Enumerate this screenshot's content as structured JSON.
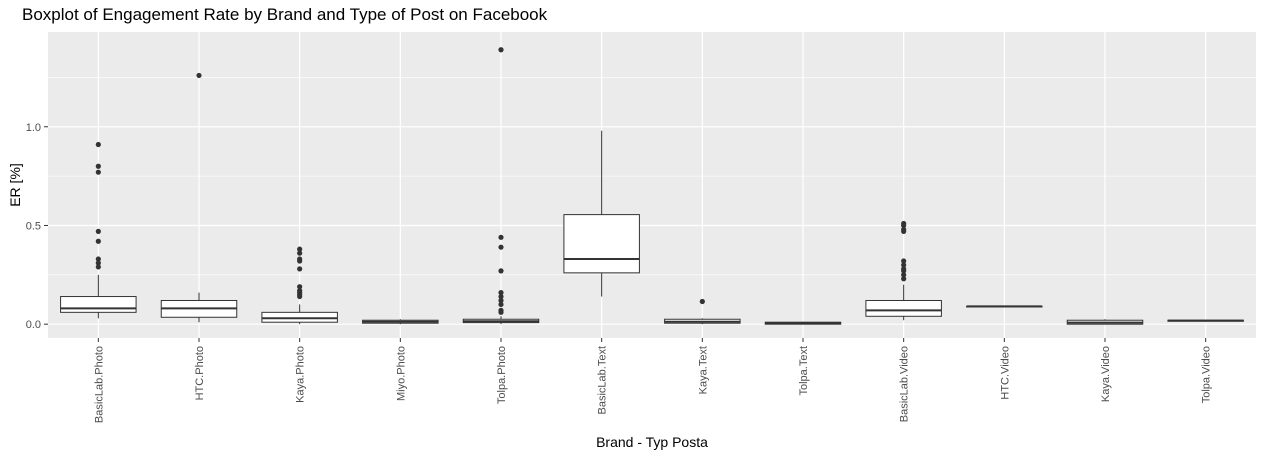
{
  "chart_data": {
    "type": "boxplot",
    "title": "Boxplot of Engagement Rate by Brand and Type of Post on Facebook",
    "xlabel": "Brand - Typ Posta",
    "ylabel": "ER [%]",
    "ylim": [
      -0.07,
      1.48
    ],
    "y_ticks": [
      0.0,
      0.5,
      1.0
    ],
    "y_tick_labels": [
      "0.0",
      "0.5",
      "1.0"
    ],
    "grid": true,
    "background": "#EBEBEB",
    "categories": [
      "BasicLab.Photo",
      "HTC.Photo",
      "Kaya.Photo",
      "Miyo.Photo",
      "Tolpa.Photo",
      "BasicLab.Text",
      "Kaya.Text",
      "Tolpa.Text",
      "BasicLab.Video",
      "HTC.Video",
      "Kaya.Video",
      "Tolpa.Video"
    ],
    "boxes": [
      {
        "category": "BasicLab.Photo",
        "min": 0.03,
        "q1": 0.06,
        "median": 0.08,
        "q3": 0.14,
        "max": 0.25,
        "outliers": [
          0.91,
          0.8,
          0.77,
          0.47,
          0.42,
          0.33,
          0.31,
          0.29
        ]
      },
      {
        "category": "HTC.Photo",
        "min": 0.01,
        "q1": 0.035,
        "median": 0.08,
        "q3": 0.12,
        "max": 0.16,
        "outliers": [
          1.26
        ]
      },
      {
        "category": "Kaya.Photo",
        "min": 0.0,
        "q1": 0.01,
        "median": 0.03,
        "q3": 0.06,
        "max": 0.1,
        "outliers": [
          0.38,
          0.36,
          0.33,
          0.32,
          0.28,
          0.19,
          0.17,
          0.16,
          0.15,
          0.14
        ]
      },
      {
        "category": "Miyo.Photo",
        "min": 0.0,
        "q1": 0.005,
        "median": 0.012,
        "q3": 0.02,
        "max": 0.025,
        "outliers": []
      },
      {
        "category": "Tolpa.Photo",
        "min": 0.0,
        "q1": 0.008,
        "median": 0.015,
        "q3": 0.025,
        "max": 0.04,
        "outliers": [
          1.39,
          0.44,
          0.39,
          0.27,
          0.16,
          0.14,
          0.12,
          0.1,
          0.07,
          0.06
        ]
      },
      {
        "category": "BasicLab.Text",
        "min": 0.14,
        "q1": 0.26,
        "median": 0.33,
        "q3": 0.555,
        "max": 0.98,
        "outliers": []
      },
      {
        "category": "Kaya.Text",
        "min": 0.0,
        "q1": 0.005,
        "median": 0.012,
        "q3": 0.025,
        "max": 0.03,
        "outliers": [
          0.115
        ]
      },
      {
        "category": "Tolpa.Text",
        "min": 0.0,
        "q1": 0.0,
        "median": 0.005,
        "q3": 0.01,
        "max": 0.012,
        "outliers": []
      },
      {
        "category": "BasicLab.Video",
        "min": 0.02,
        "q1": 0.04,
        "median": 0.07,
        "q3": 0.12,
        "max": 0.2,
        "outliers": [
          0.51,
          0.5,
          0.48,
          0.47,
          0.32,
          0.3,
          0.28,
          0.27,
          0.25,
          0.23
        ]
      },
      {
        "category": "HTC.Video",
        "min": 0.09,
        "q1": 0.09,
        "median": 0.09,
        "q3": 0.09,
        "max": 0.09,
        "outliers": []
      },
      {
        "category": "Kaya.Video",
        "min": 0.0,
        "q1": 0.0,
        "median": 0.008,
        "q3": 0.02,
        "max": 0.025,
        "outliers": []
      },
      {
        "category": "Tolpa.Video",
        "min": 0.012,
        "q1": 0.015,
        "median": 0.018,
        "q3": 0.02,
        "max": 0.022,
        "outliers": []
      }
    ]
  }
}
